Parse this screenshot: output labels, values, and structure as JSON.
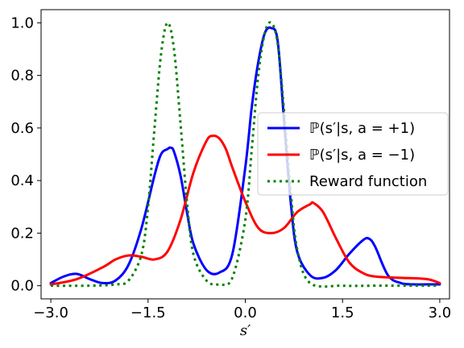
{
  "chart_data": {
    "type": "line",
    "title": "",
    "xlabel": "s′",
    "ylabel": "",
    "xlim": [
      -3.15,
      3.15
    ],
    "ylim": [
      -0.05,
      1.05
    ],
    "xticks": [
      -3.0,
      -1.5,
      0.0,
      1.5,
      3.0
    ],
    "xtick_labels": [
      "−3.0",
      "−1.5",
      "0.0",
      "1.5",
      "3.0"
    ],
    "yticks": [
      0.0,
      0.2,
      0.4,
      0.6,
      0.8,
      1.0
    ],
    "ytick_labels": [
      "0.0",
      "0.2",
      "0.4",
      "0.6",
      "0.8",
      "1.0"
    ],
    "grid": false,
    "legend_position": "center-right",
    "series": [
      {
        "name": "ℙ(s′|s, a = +1)",
        "color": "#0000ff",
        "style": "solid",
        "x": [
          -3.0,
          -2.8,
          -2.6,
          -2.4,
          -2.2,
          -2.0,
          -1.8,
          -1.6,
          -1.4,
          -1.3,
          -1.2,
          -1.15,
          -1.1,
          -1.0,
          -0.9,
          -0.8,
          -0.6,
          -0.4,
          -0.2,
          0.0,
          0.1,
          0.2,
          0.3,
          0.4,
          0.5,
          0.6,
          0.7,
          0.8,
          1.0,
          1.2,
          1.4,
          1.6,
          1.8,
          1.9,
          2.0,
          2.2,
          2.4,
          2.6,
          2.8,
          3.0
        ],
        "y": [
          0.01,
          0.035,
          0.045,
          0.025,
          0.01,
          0.02,
          0.08,
          0.22,
          0.42,
          0.5,
          0.52,
          0.525,
          0.51,
          0.42,
          0.28,
          0.16,
          0.06,
          0.05,
          0.12,
          0.45,
          0.68,
          0.85,
          0.96,
          0.98,
          0.93,
          0.62,
          0.32,
          0.13,
          0.04,
          0.03,
          0.06,
          0.12,
          0.17,
          0.18,
          0.15,
          0.04,
          0.01,
          0.005,
          0.005,
          0.005
        ]
      },
      {
        "name": "ℙ(s′|s, a = −1)",
        "color": "#ff0000",
        "style": "solid",
        "x": [
          -3.0,
          -2.6,
          -2.2,
          -2.0,
          -1.8,
          -1.6,
          -1.4,
          -1.2,
          -1.0,
          -0.8,
          -0.6,
          -0.5,
          -0.4,
          -0.3,
          -0.2,
          0.0,
          0.2,
          0.4,
          0.6,
          0.8,
          1.0,
          1.05,
          1.2,
          1.4,
          1.6,
          1.8,
          2.0,
          2.4,
          2.8,
          3.0
        ],
        "y": [
          0.005,
          0.025,
          0.07,
          0.1,
          0.115,
          0.11,
          0.1,
          0.13,
          0.25,
          0.43,
          0.55,
          0.57,
          0.56,
          0.52,
          0.45,
          0.32,
          0.22,
          0.2,
          0.22,
          0.28,
          0.31,
          0.315,
          0.28,
          0.18,
          0.09,
          0.05,
          0.035,
          0.03,
          0.025,
          0.01
        ]
      },
      {
        "name": "Reward function",
        "color": "#008000",
        "style": "dotted",
        "x": [
          -3.0,
          -2.4,
          -2.0,
          -1.8,
          -1.6,
          -1.5,
          -1.4,
          -1.3,
          -1.2,
          -1.1,
          -1.0,
          -0.9,
          -0.8,
          -0.6,
          -0.4,
          -0.2,
          0.0,
          0.1,
          0.2,
          0.3,
          0.4,
          0.5,
          0.6,
          0.7,
          0.8,
          1.0,
          1.5,
          2.0,
          3.0
        ],
        "y": [
          0.0,
          0.0,
          0.005,
          0.02,
          0.12,
          0.3,
          0.6,
          0.88,
          1.0,
          0.9,
          0.62,
          0.32,
          0.12,
          0.02,
          0.005,
          0.03,
          0.25,
          0.52,
          0.8,
          0.96,
          1.0,
          0.92,
          0.66,
          0.36,
          0.14,
          0.01,
          0.0,
          0.0,
          0.0
        ]
      }
    ]
  }
}
